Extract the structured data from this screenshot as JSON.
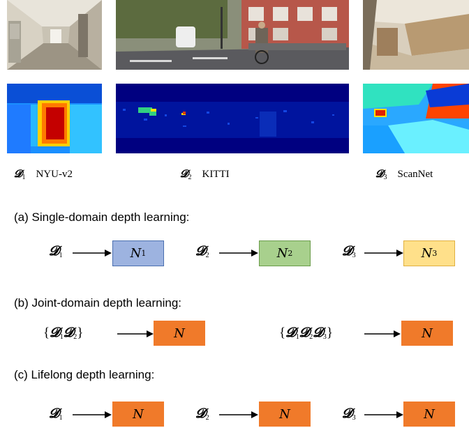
{
  "datasets": [
    {
      "symbol": "𝓓",
      "sub": "1",
      "name": "NYU-v2"
    },
    {
      "symbol": "𝓓",
      "sub": "2",
      "name": "KITTI"
    },
    {
      "symbol": "𝓓",
      "sub": "3",
      "name": "ScanNet"
    }
  ],
  "sections": {
    "a": "(a) Single-domain depth learning:",
    "b": "(b) Joint-domain depth learning:",
    "c": "(c) Lifelong depth learning:"
  },
  "single": {
    "inputs": [
      {
        "symbol": "𝓓",
        "sub": "1"
      },
      {
        "symbol": "𝓓",
        "sub": "2"
      },
      {
        "symbol": "𝓓",
        "sub": "3"
      }
    ],
    "outputs": [
      {
        "letter": "N",
        "sub": "1"
      },
      {
        "letter": "N",
        "sub": "2"
      },
      {
        "letter": "N",
        "sub": "3"
      }
    ]
  },
  "joint": {
    "input_a": {
      "open": "{",
      "close": "}",
      "symbol": "𝓓",
      "subs": [
        "1",
        "2"
      ]
    },
    "input_b": {
      "open": "{",
      "close": "}",
      "symbol": "𝓓",
      "subs": [
        "1",
        "2",
        "3"
      ]
    },
    "output": "N"
  },
  "lifelong": {
    "inputs": [
      {
        "symbol": "𝓓",
        "sub": "1"
      },
      {
        "symbol": "𝓓",
        "sub": "2"
      },
      {
        "symbol": "𝓓",
        "sub": "3"
      }
    ],
    "output": "N"
  },
  "colors": {
    "box_n1_fill": "#9db3e0",
    "box_n1_border": "#4a6fb0",
    "box_n2_fill": "#a8d08d",
    "box_n2_border": "#6a9c4a",
    "box_n3_fill": "#ffe08a",
    "box_n3_border": "#e0b040",
    "box_n_fill": "#f07a2a"
  }
}
